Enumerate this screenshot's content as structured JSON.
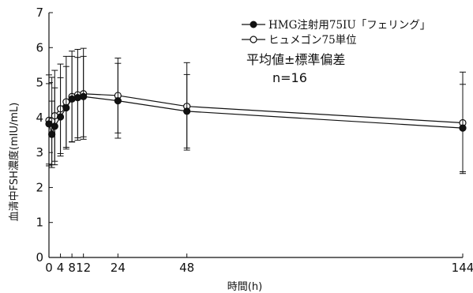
{
  "chart_data": {
    "type": "line",
    "xlabel": "時間(h)",
    "ylabel": "血清中FSH濃度(mIU/mL)",
    "xlim": [
      0,
      144
    ],
    "ylim": [
      0,
      7
    ],
    "x_ticks": [
      0,
      4,
      8,
      12,
      24,
      48,
      144
    ],
    "x_tick_labels": [
      "0",
      "4",
      "8",
      "12",
      "24",
      "48",
      "144"
    ],
    "y_ticks": [
      0,
      1,
      2,
      3,
      4,
      5,
      6,
      7
    ],
    "y_tick_labels": [
      "0",
      "1",
      "2",
      "3",
      "4",
      "5",
      "6",
      "7"
    ],
    "grid": false,
    "legend_position": "top-right",
    "series": [
      {
        "name": "HMG注射用75IU「フェリング」",
        "marker": "filled-circle",
        "color": "#111111",
        "x": [
          0,
          1,
          2,
          4,
          6,
          8,
          10,
          12,
          24,
          48,
          144
        ],
        "y": [
          3.82,
          3.52,
          3.75,
          4.02,
          4.28,
          4.53,
          4.57,
          4.6,
          4.48,
          4.18,
          3.7
        ],
        "sd": [
          1.15,
          0.95,
          1.1,
          1.12,
          1.18,
          1.22,
          1.15,
          1.15,
          1.07,
          1.05,
          1.25
        ]
      },
      {
        "name": "ヒュメゴン75単位",
        "marker": "open-circle",
        "color": "#111111",
        "x": [
          0,
          1,
          2,
          4,
          6,
          8,
          10,
          12,
          24,
          48,
          144
        ],
        "y": [
          3.92,
          3.9,
          4.05,
          4.25,
          4.45,
          4.6,
          4.65,
          4.68,
          4.63,
          4.32,
          3.85
        ],
        "sd": [
          1.3,
          1.25,
          1.3,
          1.28,
          1.3,
          1.3,
          1.3,
          1.3,
          1.07,
          1.25,
          1.45
        ]
      }
    ],
    "annotations": [
      "平均値±標準偏差",
      "n=16"
    ]
  }
}
